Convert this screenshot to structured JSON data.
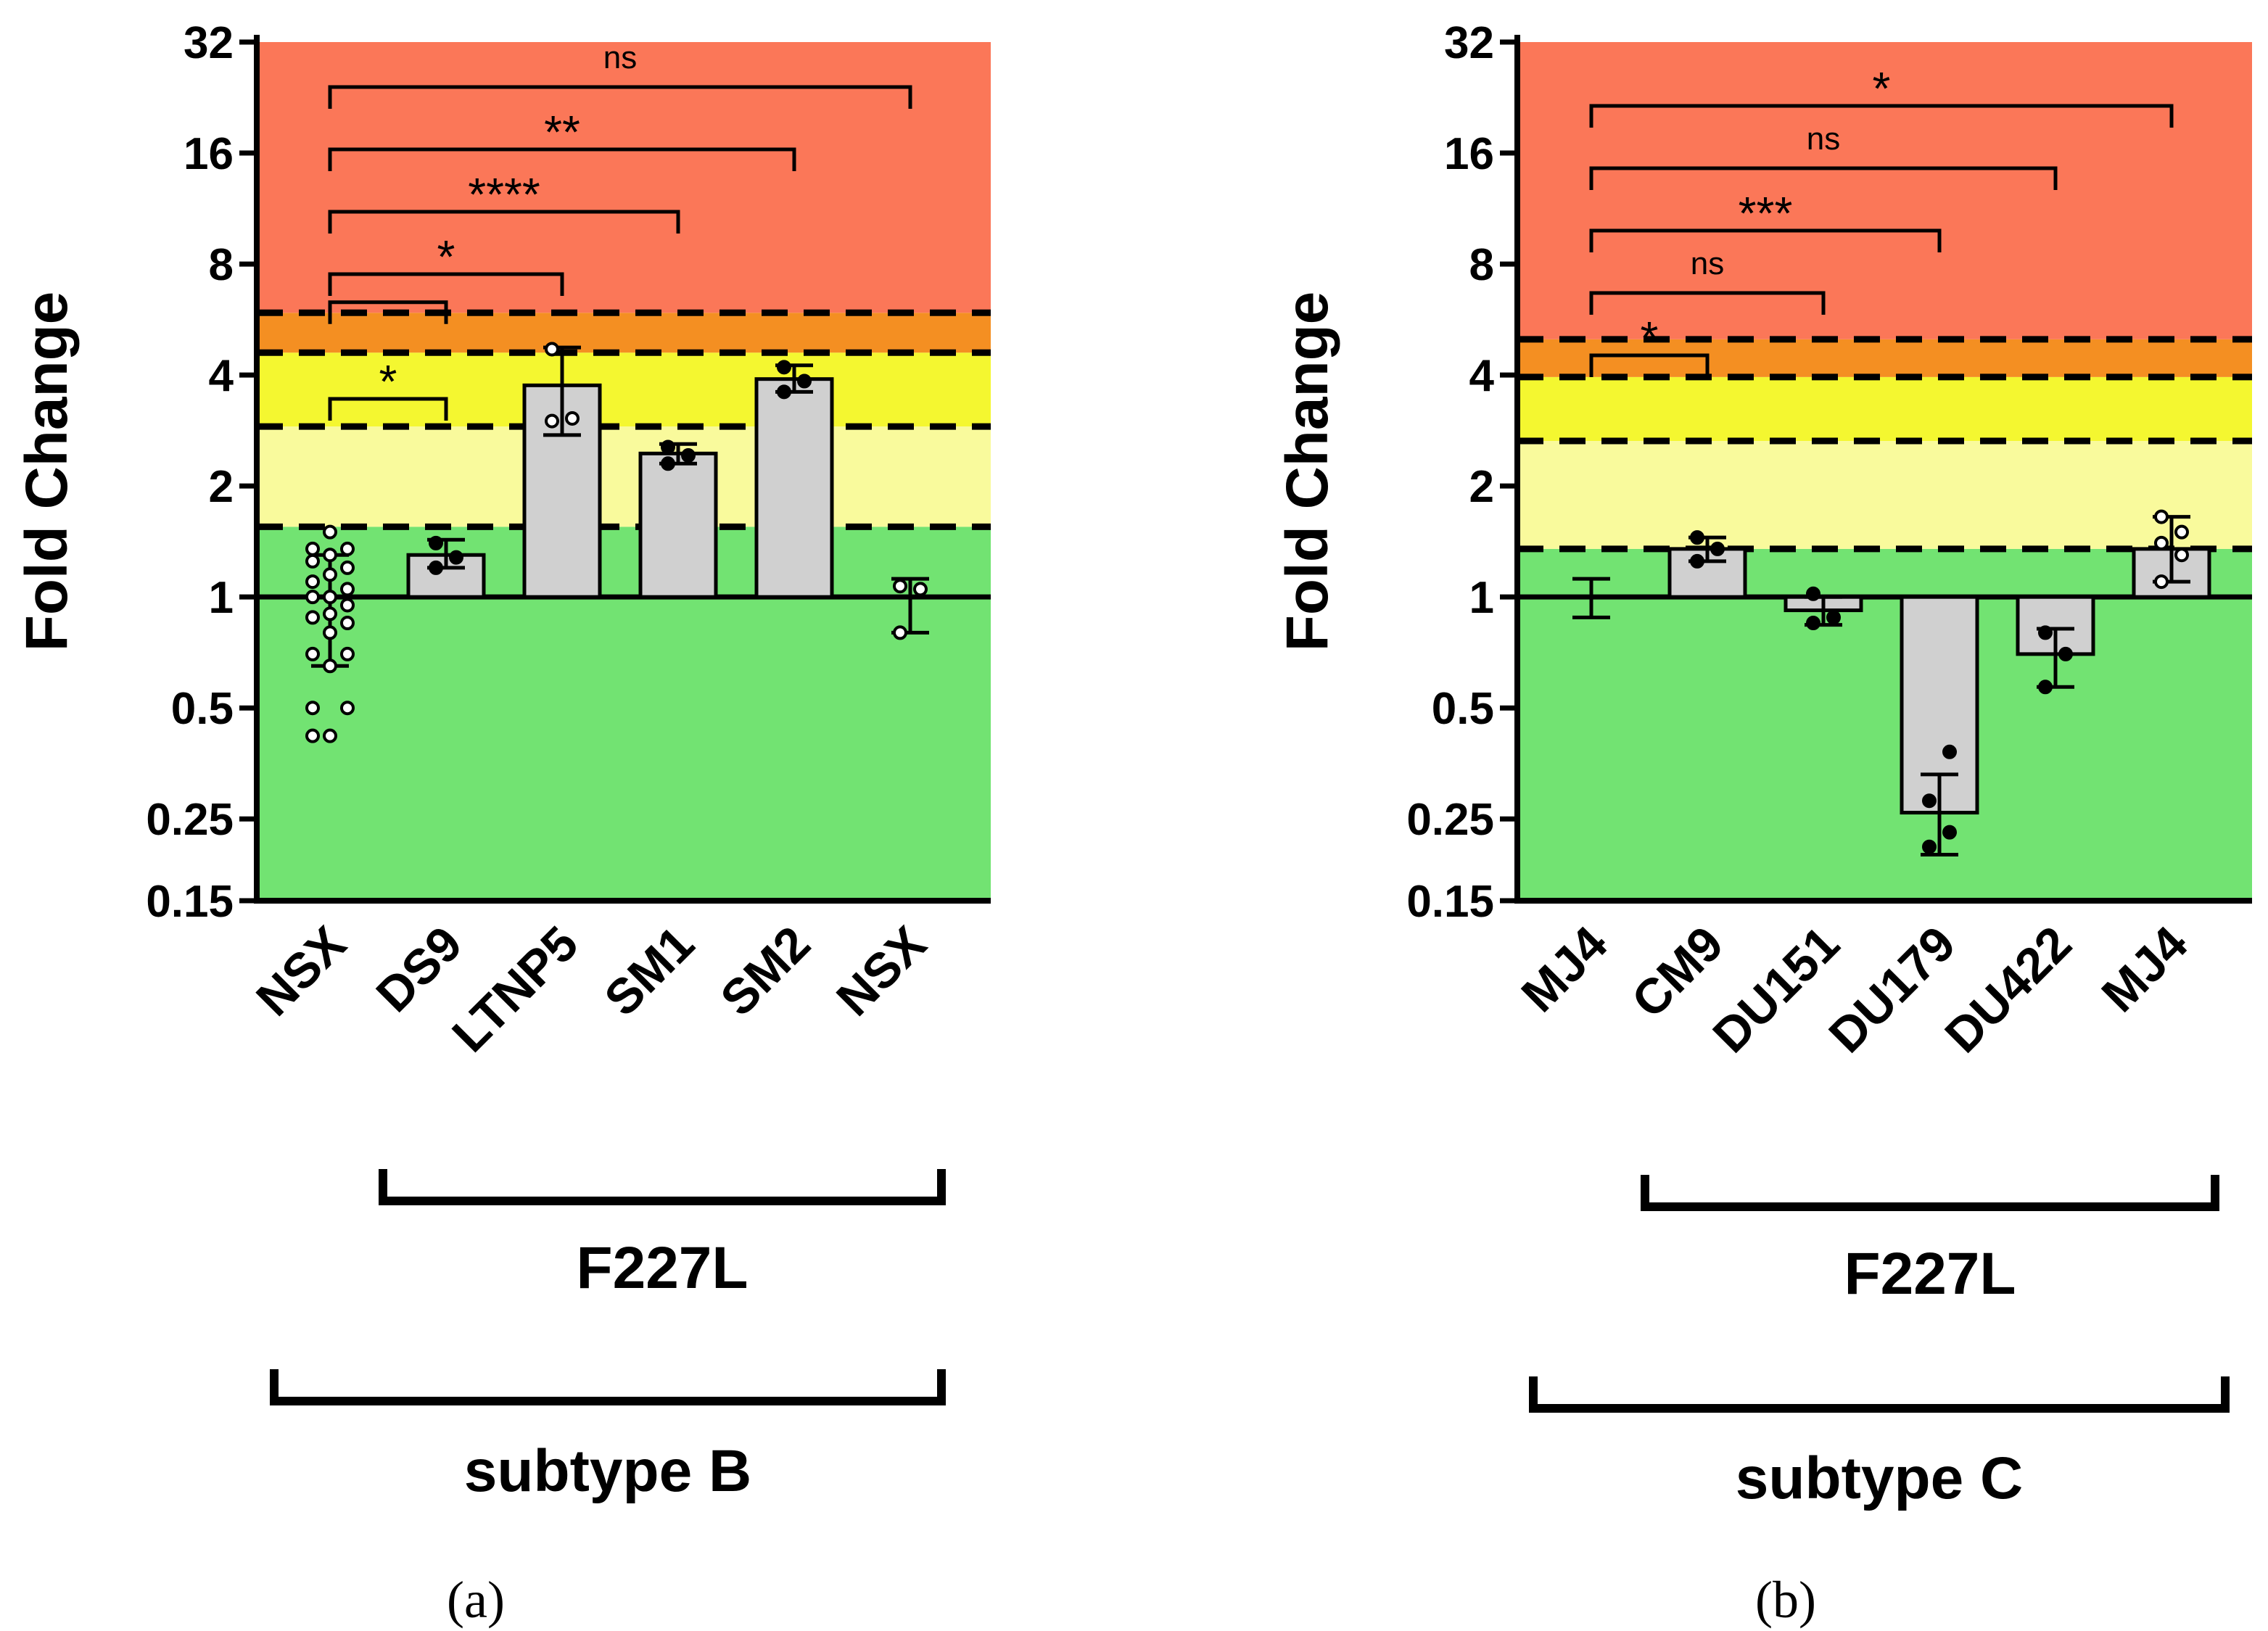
{
  "chart_data": [
    {
      "type": "bar",
      "panel_label": "(a)",
      "ylabel": "Fold Change",
      "yscale": "log2",
      "ylim": [
        0.15,
        32
      ],
      "yticks": [
        {
          "value": 32,
          "label": "32"
        },
        {
          "value": 16,
          "label": "16"
        },
        {
          "value": 8,
          "label": "8"
        },
        {
          "value": 4,
          "label": "4"
        },
        {
          "value": 2,
          "label": "2"
        },
        {
          "value": 1,
          "label": "1"
        },
        {
          "value": 0.5,
          "label": "0.5"
        },
        {
          "value": 0.25,
          "label": "0.25"
        },
        {
          "value": 0.15,
          "label": "0.15"
        }
      ],
      "zones": [
        {
          "from": 0.15,
          "to": 1.55,
          "color": "#72e372"
        },
        {
          "from": 1.55,
          "to": 2.9,
          "color": "#f9fa9c"
        },
        {
          "from": 2.9,
          "to": 4.6,
          "color": "#f4f730"
        },
        {
          "from": 4.6,
          "to": 5.9,
          "color": "#f48f22"
        },
        {
          "from": 5.9,
          "to": 32,
          "color": "#fb7758"
        }
      ],
      "thresholds": [
        1.55,
        2.9,
        4.6,
        5.9
      ],
      "categories": [
        "NSX",
        "DS9",
        "LTNP5",
        "SM1",
        "SM2",
        "NSX"
      ],
      "bars": [
        {
          "value": 1.0,
          "err_lo": 0.65,
          "err_hi": 1.3,
          "show_bar": false,
          "filled": false,
          "points": [
            0.42,
            0.42,
            0.5,
            0.5,
            0.65,
            0.7,
            0.7,
            0.8,
            0.85,
            0.88,
            0.9,
            0.95,
            1.0,
            1.0,
            1.05,
            1.1,
            1.15,
            1.2,
            1.25,
            1.3,
            1.35,
            1.35,
            1.5
          ]
        },
        {
          "value": 1.3,
          "err_lo": 1.2,
          "err_hi": 1.43,
          "show_bar": true,
          "filled": true,
          "points": [
            1.2,
            1.28,
            1.4
          ]
        },
        {
          "value": 3.75,
          "err_lo": 2.75,
          "err_hi": 4.75,
          "show_bar": true,
          "filled": false,
          "points": [
            3.0,
            3.05,
            4.7
          ]
        },
        {
          "value": 2.45,
          "err_lo": 2.3,
          "err_hi": 2.6,
          "show_bar": true,
          "filled": true,
          "points": [
            2.3,
            2.42,
            2.55
          ]
        },
        {
          "value": 3.9,
          "err_lo": 3.6,
          "err_hi": 4.25,
          "show_bar": true,
          "filled": true,
          "points": [
            3.6,
            3.85,
            4.2
          ]
        },
        {
          "value": 0.98,
          "err_lo": 0.8,
          "err_hi": 1.12,
          "show_bar": false,
          "filled": false,
          "points": [
            0.8,
            1.05,
            1.07
          ]
        }
      ],
      "comparisons": [
        {
          "to": 5,
          "label": "ns"
        },
        {
          "to": 4,
          "label": "**"
        },
        {
          "to": 3,
          "label": "****"
        },
        {
          "to": 2,
          "label": "*"
        },
        {
          "to": 1,
          "label": "",
          "height": 6.3
        },
        {
          "to": 1,
          "label": "*"
        }
      ],
      "groups": [
        {
          "label": "F227L",
          "from": 1,
          "to": 5
        },
        {
          "label": "subtype B",
          "from": 0,
          "to": 5
        }
      ]
    },
    {
      "type": "bar",
      "panel_label": "(b)",
      "ylabel": "Fold Change",
      "yscale": "log2",
      "ylim": [
        0.15,
        32
      ],
      "yticks": [
        {
          "value": 32,
          "label": "32"
        },
        {
          "value": 16,
          "label": "16"
        },
        {
          "value": 8,
          "label": "8"
        },
        {
          "value": 4,
          "label": "4"
        },
        {
          "value": 2,
          "label": "2"
        },
        {
          "value": 1,
          "label": "1"
        },
        {
          "value": 0.5,
          "label": "0.5"
        },
        {
          "value": 0.25,
          "label": "0.25"
        },
        {
          "value": 0.15,
          "label": "0.15"
        }
      ],
      "zones": [
        {
          "from": 0.15,
          "to": 1.35,
          "color": "#72e372"
        },
        {
          "from": 1.35,
          "to": 2.65,
          "color": "#f9fa9c"
        },
        {
          "from": 2.65,
          "to": 3.95,
          "color": "#f4f730"
        },
        {
          "from": 3.95,
          "to": 5.0,
          "color": "#f48f22"
        },
        {
          "from": 5.0,
          "to": 32,
          "color": "#fb7758"
        }
      ],
      "thresholds": [
        1.35,
        2.65,
        3.95,
        5.0
      ],
      "categories": [
        "MJ4",
        "CM9",
        "DU151",
        "DU179",
        "DU422",
        "MJ4"
      ],
      "bars": [
        {
          "value": 1.0,
          "err_lo": 0.88,
          "err_hi": 1.12,
          "show_bar": false,
          "filled": false,
          "points": []
        },
        {
          "value": 1.35,
          "err_lo": 1.25,
          "err_hi": 1.45,
          "show_bar": true,
          "filled": true,
          "points": [
            1.25,
            1.35,
            1.45
          ]
        },
        {
          "value": 0.92,
          "err_lo": 0.84,
          "err_hi": 1.0,
          "show_bar": true,
          "filled": true,
          "points": [
            0.85,
            0.88,
            1.02
          ]
        },
        {
          "value": 0.26,
          "err_lo": 0.2,
          "err_hi": 0.33,
          "show_bar": true,
          "filled": true,
          "points": [
            0.21,
            0.23,
            0.28,
            0.38
          ]
        },
        {
          "value": 0.7,
          "err_lo": 0.57,
          "err_hi": 0.82,
          "show_bar": true,
          "filled": true,
          "points": [
            0.57,
            0.7,
            0.8
          ]
        },
        {
          "value": 1.35,
          "err_lo": 1.1,
          "err_hi": 1.65,
          "show_bar": true,
          "filled": false,
          "points": [
            1.1,
            1.3,
            1.4,
            1.5,
            1.65
          ]
        }
      ],
      "comparisons": [
        {
          "to": 5,
          "label": "*"
        },
        {
          "to": 4,
          "label": "ns"
        },
        {
          "to": 3,
          "label": "***"
        },
        {
          "to": 2,
          "label": "ns"
        },
        {
          "to": 1,
          "label": "*"
        }
      ],
      "groups": [
        {
          "label": "F227L",
          "from": 1,
          "to": 5
        },
        {
          "label": "subtype C",
          "from": 0,
          "to": 5
        }
      ]
    }
  ]
}
